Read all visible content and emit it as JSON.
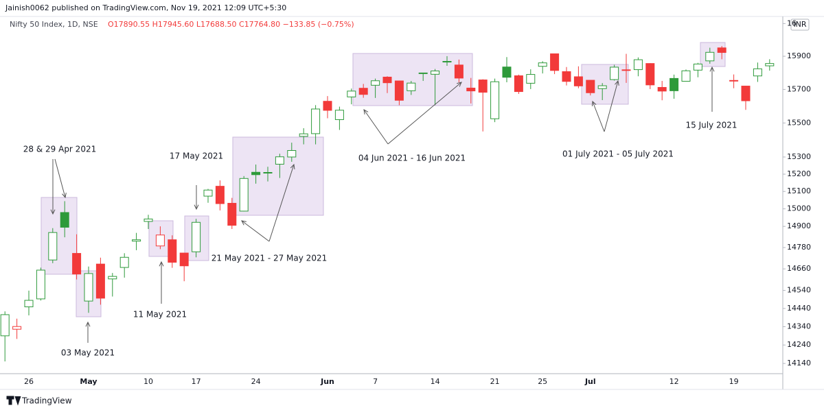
{
  "header": {
    "publisher": "Jainish0062 published on TradingView.com, Nov 19, 2021 12:09 UTC+5:30"
  },
  "chart_data": {
    "type": "candlestick",
    "symbol": "Nifty 50 Index, 1D, NSE",
    "quote": "O17890.55 H17945.60 L17688.50 C17764.80 −133.85 (−0.75%)",
    "currency": "INR",
    "categories": [
      null,
      null,
      "26",
      null,
      null,
      null,
      null,
      "May",
      null,
      null,
      null,
      null,
      "10",
      null,
      null,
      null,
      "17",
      null,
      null,
      null,
      null,
      "24",
      null,
      null,
      null,
      null,
      null,
      "Jun",
      null,
      null,
      null,
      "7",
      null,
      null,
      null,
      null,
      "14",
      null,
      null,
      null,
      null,
      "21",
      null,
      null,
      null,
      "25",
      null,
      null,
      null,
      "Jul",
      null,
      null,
      null,
      null,
      null,
      null,
      "12",
      null,
      null,
      null,
      null,
      "19",
      null,
      null,
      null
    ],
    "open": [
      14290,
      14326,
      14449,
      14493,
      14710,
      14979,
      14747,
      14481,
      14687,
      14604,
      14668,
      14816,
      14928,
      14789,
      14824,
      14749,
      14756,
      15073,
      15130,
      15032,
      14987,
      15211,
      15210,
      15258,
      15300,
      15421,
      15437,
      15629,
      15520,
      15655,
      15707,
      15725,
      15774,
      15751,
      15692,
      15796,
      15791,
      15867,
      15847,
      15708,
      15757,
      15525,
      15835,
      15782,
      15737,
      15839,
      15915,
      15807,
      15776,
      15755,
      15705,
      15759,
      15814,
      15819,
      15856,
      15712,
      15766,
      15749,
      15816,
      15872,
      15951,
      15754,
      15720,
      15781,
      15842
    ],
    "high": [
      14424,
      14384,
      14539,
      14667,
      14890,
      15044,
      14855,
      14673,
      14723,
      14637,
      14748,
      14863,
      14966,
      14900,
      14849,
      14749,
      14943,
      15115,
      15164,
      15063,
      15189,
      15256,
      15243,
      15319,
      15384,
      15469,
      15606,
      15660,
      15597,
      15705,
      15733,
      15765,
      15779,
      15752,
      15751,
      15800,
      15823,
      15901,
      15880,
      15769,
      15761,
      15765,
      15895,
      15789,
      15821,
      15870,
      15915,
      15835,
      15839,
      15755,
      15738,
      15848,
      15915,
      15893,
      15858,
      15751,
      15789,
      15820,
      15860,
      15952,
      15962,
      15790,
      15721,
      15862,
      15882
    ],
    "low": [
      14151,
      14273,
      14402,
      14484,
      14692,
      14838,
      14601,
      14416,
      14461,
      14506,
      14611,
      14765,
      14885,
      14771,
      14666,
      14591,
      14725,
      15035,
      14991,
      14885,
      14985,
      15145,
      15158,
      15178,
      15272,
      15374,
      15374,
      15528,
      15459,
      15611,
      15650,
      15649,
      15678,
      15606,
      15667,
      15751,
      15606,
      15842,
      15742,
      15616,
      15450,
      15505,
      15743,
      15673,
      15702,
      15796,
      15792,
      15724,
      15707,
      15664,
      15636,
      15753,
      15739,
      15779,
      15702,
      15635,
      15644,
      15749,
      15773,
      15855,
      15882,
      15707,
      15578,
      15745,
      15813
    ],
    "close": [
      14406,
      14341,
      14485,
      14653,
      14865,
      14895,
      14631,
      14634,
      14497,
      14618,
      14725,
      14824,
      14942,
      14851,
      14697,
      14677,
      14923,
      15108,
      15030,
      14906,
      15175,
      15197,
      15208,
      15301,
      15338,
      15436,
      15583,
      15575,
      15576,
      15690,
      15670,
      15752,
      15740,
      15635,
      15738,
      15799,
      15811,
      15869,
      15768,
      15691,
      15683,
      15746,
      15773,
      15687,
      15790,
      15860,
      15814,
      15748,
      15721,
      15680,
      15722,
      15834,
      15818,
      15879,
      15727,
      15690,
      15692,
      15812,
      15853,
      15924,
      15923,
      15752,
      15632,
      15824,
      15856
    ],
    "up_color": "#2e9a3a",
    "down_color": "#f23a3a",
    "log_scale": true,
    "ylim": [
      14085,
      16152
    ],
    "yticks": [
      14140,
      14240,
      14340,
      14440,
      14540,
      14660,
      14780,
      14900,
      15000,
      15100,
      15200,
      15300,
      15500,
      15700,
      15900,
      {
        "value": 16100,
        "label": "16"
      }
    ],
    "grid": false,
    "annotations": [
      {
        "text": "28 & 29 Apr 2021"
      },
      {
        "text": "03 May 2021"
      },
      {
        "text": "11 May 2021"
      },
      {
        "text": "17 May 2021"
      },
      {
        "text": "21 May 2021 - 27 May 2021"
      },
      {
        "text": "04 Jun 2021 - 16 Jun 2021"
      },
      {
        "text": "01 July 2021 - 05 July 2021"
      },
      {
        "text": "15 July 2021"
      }
    ]
  },
  "footer": {
    "logo": "TradingView"
  }
}
